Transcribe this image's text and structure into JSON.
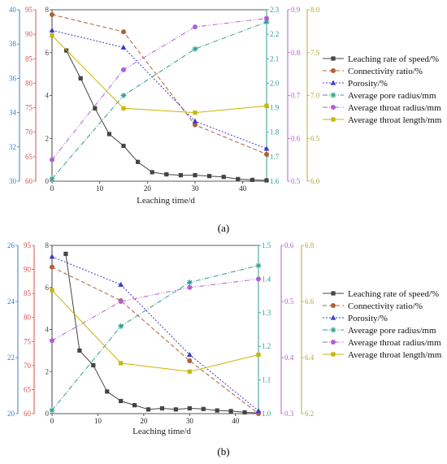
{
  "chart_data": [
    {
      "type": "line",
      "caption": "(a)",
      "xlabel": "Leaching time/d",
      "xlim": [
        0,
        45
      ],
      "xticks": [
        0,
        10,
        20,
        30,
        40
      ],
      "axes": [
        {
          "id": "ax1",
          "color": "#3a7fc4",
          "ylim": [
            30,
            40
          ],
          "ticks": [
            30,
            32,
            34,
            36,
            38,
            40
          ]
        },
        {
          "id": "ax2",
          "color": "#d6514f",
          "ylim": [
            60,
            95
          ],
          "ticks": [
            60,
            65,
            70,
            75,
            80,
            85,
            90,
            95
          ]
        },
        {
          "id": "ax3",
          "color": "#444444",
          "ylim": [
            0,
            8
          ],
          "ticks": [
            0,
            2,
            4,
            6,
            8
          ]
        },
        {
          "id": "ax4",
          "color": "#2f9e8f",
          "ylim": [
            1.6,
            2.3
          ],
          "ticks": [
            1.6,
            1.7,
            1.8,
            1.9,
            2.0,
            2.1,
            2.2,
            2.3
          ]
        },
        {
          "id": "ax5",
          "color": "#b15fd6",
          "ylim": [
            0.5,
            0.9
          ],
          "ticks": [
            0.5,
            0.6,
            0.7,
            0.8,
            0.9
          ]
        },
        {
          "id": "ax6",
          "color": "#b7a83a",
          "ylim": [
            6.0,
            8.0
          ],
          "ticks": [
            6.0,
            6.5,
            7.0,
            7.5,
            8.0
          ]
        }
      ],
      "series": [
        {
          "name": "Leaching rate of speed/%",
          "axis": "ax3",
          "color": "#444444",
          "dash": "",
          "marker": "square",
          "x": [
            3,
            6,
            9,
            12,
            15,
            18,
            21,
            24,
            27,
            30,
            33,
            36,
            39,
            42,
            45
          ],
          "y": [
            6.1,
            4.8,
            3.4,
            2.2,
            1.65,
            0.9,
            0.42,
            0.32,
            0.28,
            0.28,
            0.24,
            0.2,
            0.1,
            0.06,
            0.04
          ]
        },
        {
          "name": "Connectivity ratio/%",
          "axis": "ax2",
          "color": "#b06038",
          "dash": "5,3",
          "marker": "circle",
          "x": [
            0,
            15,
            30,
            45
          ],
          "y": [
            94,
            90.5,
            71.5,
            65.5
          ]
        },
        {
          "name": "Porosity/%",
          "axis": "ax1",
          "color": "#3b3bc9",
          "dash": "2,2",
          "marker": "triangle",
          "x": [
            0,
            15,
            30,
            45
          ],
          "y": [
            38.8,
            37.8,
            33.5,
            31.9
          ]
        },
        {
          "name": "Average pore radius/mm",
          "axis": "ax4",
          "color": "#2f9e8f",
          "dash": "6,2,1,2",
          "marker": "star",
          "x": [
            0,
            15,
            30,
            45
          ],
          "y": [
            1.61,
            1.95,
            2.14,
            2.25
          ]
        },
        {
          "name": "Average throat radius/mm",
          "axis": "ax5",
          "color": "#b15fd6",
          "dash": "6,2,1,2,1,2",
          "marker": "circle",
          "x": [
            0,
            15,
            30,
            45
          ],
          "y": [
            0.55,
            0.76,
            0.86,
            0.88
          ]
        },
        {
          "name": "Average throat length/mm",
          "axis": "ax6",
          "color": "#c9b600",
          "dash": "",
          "marker": "square",
          "x": [
            0,
            15,
            30,
            45
          ],
          "y": [
            7.7,
            6.85,
            6.8,
            6.88
          ]
        }
      ]
    },
    {
      "type": "line",
      "caption": "(b)",
      "xlabel": "Leaching time/d",
      "xlim": [
        0,
        45
      ],
      "xticks": [
        0,
        10,
        20,
        30,
        40
      ],
      "axes": [
        {
          "id": "ax1",
          "color": "#3a7fc4",
          "ylim": [
            20,
            26
          ],
          "ticks": [
            20,
            22,
            24,
            26
          ]
        },
        {
          "id": "ax2",
          "color": "#d6514f",
          "ylim": [
            60,
            95
          ],
          "ticks": [
            60,
            65,
            70,
            75,
            80,
            85,
            90,
            95
          ]
        },
        {
          "id": "ax3",
          "color": "#444444",
          "ylim": [
            0,
            8
          ],
          "ticks": [
            0,
            2,
            4,
            6,
            8
          ]
        },
        {
          "id": "ax4",
          "color": "#2f9e8f",
          "ylim": [
            1.0,
            1.5
          ],
          "ticks": [
            1.0,
            1.1,
            1.2,
            1.3,
            1.4,
            1.5
          ]
        },
        {
          "id": "ax5",
          "color": "#b15fd6",
          "ylim": [
            0.3,
            0.6
          ],
          "ticks": [
            0.3,
            0.4,
            0.5,
            0.6
          ]
        },
        {
          "id": "ax6",
          "color": "#b7a83a",
          "ylim": [
            6.2,
            6.8
          ],
          "ticks": [
            6.2,
            6.4,
            6.6,
            6.8
          ]
        }
      ],
      "series": [
        {
          "name": "Leaching rate of speed/%",
          "axis": "ax3",
          "color": "#444444",
          "dash": "",
          "marker": "square",
          "x": [
            3,
            6,
            9,
            12,
            15,
            18,
            21,
            24,
            27,
            30,
            33,
            36,
            39,
            42,
            45
          ],
          "y": [
            7.6,
            3.0,
            2.3,
            1.05,
            0.6,
            0.4,
            0.2,
            0.25,
            0.2,
            0.25,
            0.22,
            0.15,
            0.12,
            0.06,
            0.03
          ]
        },
        {
          "name": "Connectivity ratio/%",
          "axis": "ax2",
          "color": "#b06038",
          "dash": "5,3",
          "marker": "circle",
          "x": [
            0,
            15,
            30,
            45
          ],
          "y": [
            90.5,
            83.5,
            71,
            60
          ]
        },
        {
          "name": "Porosity/%",
          "axis": "ax1",
          "color": "#3b3bc9",
          "dash": "2,2",
          "marker": "triangle",
          "x": [
            0,
            15,
            30,
            45
          ],
          "y": [
            25.6,
            24.6,
            22.1,
            20.1
          ]
        },
        {
          "name": "Average pore radius/mm",
          "axis": "ax4",
          "color": "#2f9e8f",
          "dash": "6,2,1,2",
          "marker": "star",
          "x": [
            0,
            15,
            30,
            45
          ],
          "y": [
            1.01,
            1.26,
            1.39,
            1.44
          ]
        },
        {
          "name": "Average throat radius/mm",
          "axis": "ax5",
          "color": "#b15fd6",
          "dash": "6,2,1,2,1,2",
          "marker": "circle",
          "x": [
            0,
            15,
            30,
            45
          ],
          "y": [
            0.43,
            0.5,
            0.525,
            0.54
          ]
        },
        {
          "name": "Average throat length/mm",
          "axis": "ax6",
          "color": "#c9b600",
          "dash": "",
          "marker": "square",
          "x": [
            0,
            15,
            30,
            45
          ],
          "y": [
            6.64,
            6.38,
            6.35,
            6.41
          ]
        }
      ]
    }
  ]
}
